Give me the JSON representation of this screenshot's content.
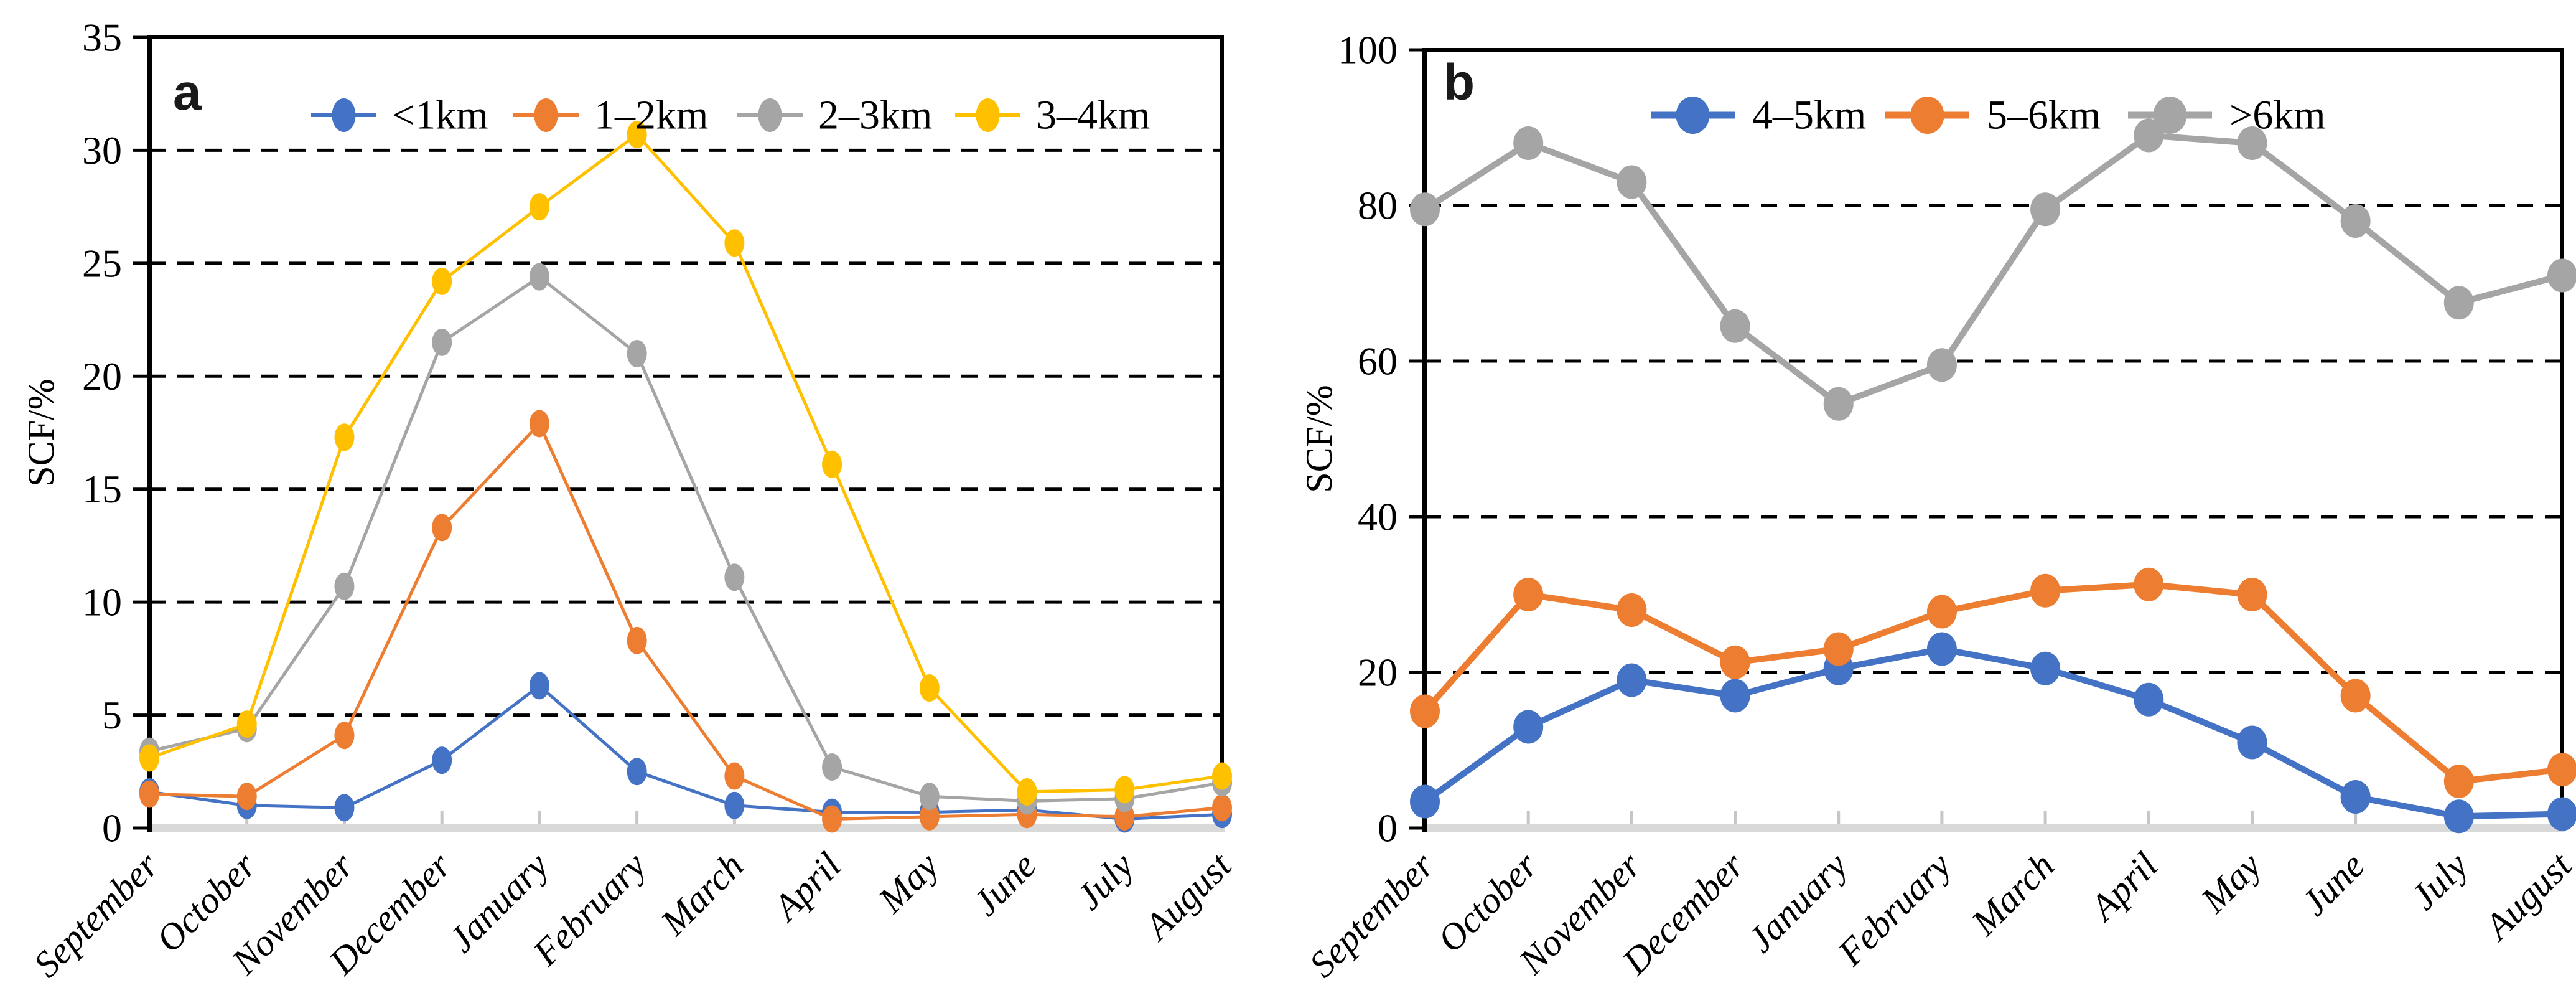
{
  "figure": {
    "description": "Two-panel monthly line chart of snow cover fraction (SCF) by elevation band",
    "background_color": "#FFFFFF",
    "text_color": "#000000",
    "baseline_color": "#D9D9D9"
  },
  "chart_data": [
    {
      "type": "line",
      "panel_label": "a",
      "title": "",
      "xlabel": "",
      "ylabel": "SCF/%",
      "ylim": [
        0,
        35
      ],
      "ytick_step": 5,
      "ytick_labels": [
        "0",
        "5",
        "10",
        "15",
        "20",
        "25",
        "30",
        "35"
      ],
      "grid": "horizontal-dashed-black",
      "legend_position": "top-center-inside",
      "categories": [
        "September",
        "October",
        "November",
        "December",
        "January",
        "February",
        "March",
        "April",
        "May",
        "June",
        "July",
        "August"
      ],
      "series": [
        {
          "name": "<1km",
          "color": "#4472C4",
          "values": [
            1.6,
            1.0,
            0.9,
            3.0,
            6.3,
            2.5,
            1.0,
            0.7,
            0.7,
            0.8,
            0.4,
            0.6
          ]
        },
        {
          "name": "1–2km",
          "color": "#ED7D31",
          "values": [
            1.5,
            1.4,
            4.1,
            13.3,
            17.9,
            8.3,
            2.3,
            0.4,
            0.5,
            0.6,
            0.5,
            0.9
          ]
        },
        {
          "name": "2–3km",
          "color": "#A5A5A5",
          "values": [
            3.4,
            4.4,
            10.7,
            21.5,
            24.4,
            21.0,
            11.1,
            2.7,
            1.4,
            1.2,
            1.3,
            2.0
          ]
        },
        {
          "name": "3–4km",
          "color": "#FFC000",
          "values": [
            3.1,
            4.6,
            17.3,
            24.2,
            27.5,
            30.7,
            25.9,
            16.1,
            6.2,
            1.6,
            1.7,
            2.3
          ]
        }
      ]
    },
    {
      "type": "line",
      "panel_label": "b",
      "title": "",
      "xlabel": "",
      "ylabel": "SCF/%",
      "ylim": [
        0,
        100
      ],
      "ytick_step": 20,
      "ytick_labels": [
        "0",
        "20",
        "40",
        "60",
        "80",
        "100"
      ],
      "grid": "horizontal-dashed-black",
      "legend_position": "top-center-inside",
      "categories": [
        "September",
        "October",
        "November",
        "December",
        "January",
        "February",
        "March",
        "April",
        "May",
        "June",
        "July",
        "August"
      ],
      "series": [
        {
          "name": "4–5km",
          "color": "#4472C4",
          "values": [
            3.4,
            13.0,
            19.0,
            17.0,
            20.5,
            23.0,
            20.5,
            16.5,
            11.0,
            4.0,
            1.5,
            1.8
          ]
        },
        {
          "name": "5–6km",
          "color": "#ED7D31",
          "values": [
            15.0,
            30.0,
            28.0,
            21.3,
            23.0,
            27.8,
            30.5,
            31.3,
            30.0,
            17.0,
            6.0,
            7.5
          ]
        },
        {
          "name": ">6km",
          "color": "#A5A5A5",
          "values": [
            79.5,
            88.0,
            83.0,
            64.5,
            54.5,
            59.5,
            79.5,
            89.0,
            88.0,
            78.0,
            67.5,
            71.0
          ]
        }
      ]
    }
  ]
}
